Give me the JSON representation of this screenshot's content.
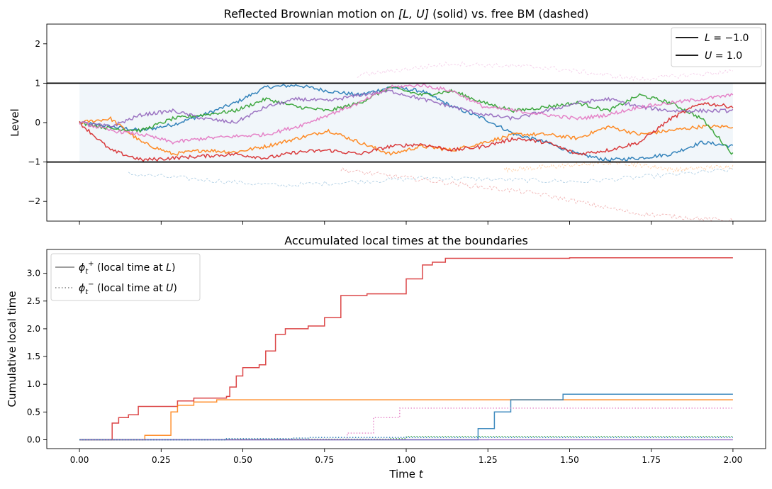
{
  "colors": {
    "tab_blue": "#1f77b4",
    "tab_orange": "#ff7f0e",
    "tab_green": "#2ca02c",
    "tab_red": "#d62728",
    "tab_purple": "#9467bd",
    "tab_pink": "#e377c2",
    "boundary": "#000000",
    "band_fill": "#e6eef5",
    "legend_gray": "#7f7f7f"
  },
  "chart_data": [
    {
      "type": "line",
      "title": "Reflected Brownian motion on [L, U] (solid) vs. free BM (dashed)",
      "title_parts": [
        "Reflected Brownian motion on ",
        "[L, U]",
        " (solid) vs. free BM (dashed)"
      ],
      "xlabel": "",
      "ylabel": "Level",
      "xlim": [
        -0.1,
        2.1
      ],
      "ylim": [
        -2.5,
        2.5
      ],
      "yticks": [
        "2",
        "1",
        "0",
        "−1",
        "−2"
      ],
      "ytick_values": [
        2,
        1,
        0,
        -1,
        -2
      ],
      "xticks_shown": false,
      "lower_boundary": -1.0,
      "upper_boundary": 1.0,
      "legend": {
        "position": "top-right",
        "entries": [
          {
            "prefix": "L",
            "text": " = −1.0"
          },
          {
            "prefix": "U",
            "text": " = 1.0"
          }
        ]
      },
      "series": [
        {
          "color": "#1f77b4",
          "reflected": [
            0,
            -0.1,
            -0.2,
            -0.05,
            0.2,
            0.5,
            0.9,
            0.95,
            0.8,
            0.7,
            0.9,
            0.8,
            0.4,
            0.1,
            -0.3,
            -0.5,
            -0.8,
            -0.95,
            -0.9,
            -0.8,
            -0.5,
            -0.6
          ],
          "free_tail": [
            -1.3,
            -1.6,
            -1.4,
            -1.5,
            -1.2
          ]
        },
        {
          "color": "#ff7f0e",
          "reflected": [
            0,
            0.1,
            -0.5,
            -0.8,
            -0.7,
            -0.75,
            -0.6,
            -0.4,
            -0.2,
            -0.5,
            -0.8,
            -0.6,
            -0.7,
            -0.5,
            -0.3,
            -0.3,
            -0.4,
            -0.1,
            -0.3,
            -0.2,
            -0.1,
            -0.1
          ],
          "free_tail": [
            -1.2,
            -1.1,
            -1.0,
            -1.2,
            -1.1
          ]
        },
        {
          "color": "#2ca02c",
          "reflected": [
            0,
            -0.15,
            -0.2,
            0.1,
            0.2,
            0.3,
            0.6,
            0.4,
            0.3,
            0.5,
            0.9,
            0.7,
            0.8,
            0.5,
            0.3,
            0.4,
            0.5,
            0.3,
            0.7,
            0.5,
            0.1,
            -0.8
          ],
          "free_tail": []
        },
        {
          "color": "#d62728",
          "reflected": [
            0,
            -0.7,
            -0.95,
            -0.9,
            -0.85,
            -0.8,
            -0.9,
            -0.75,
            -0.7,
            -0.8,
            -0.6,
            -0.55,
            -0.7,
            -0.6,
            -0.4,
            -0.5,
            -0.8,
            -0.7,
            -0.5,
            0.1,
            0.5,
            0.4
          ],
          "free_tail": [
            -1.2,
            -1.5,
            -1.8,
            -2.3,
            -2.5
          ]
        },
        {
          "color": "#9467bd",
          "reflected": [
            0,
            -0.1,
            0.2,
            0.3,
            0.1,
            0.0,
            0.4,
            0.6,
            0.55,
            0.7,
            0.8,
            0.6,
            0.4,
            0.2,
            0.1,
            0.3,
            0.5,
            0.6,
            0.4,
            0.3,
            0.3,
            0.3
          ],
          "free_tail": []
        },
        {
          "color": "#e377c2",
          "reflected": [
            0,
            -0.2,
            -0.3,
            -0.5,
            -0.4,
            -0.35,
            -0.3,
            -0.1,
            0.2,
            0.5,
            0.9,
            0.95,
            0.8,
            0.4,
            0.3,
            0.2,
            0.1,
            0.2,
            0.4,
            0.5,
            0.6,
            0.7
          ],
          "free_tail": [
            1.2,
            1.5,
            1.4,
            1.1,
            1.3
          ]
        }
      ]
    },
    {
      "type": "line",
      "title": "Accumulated local times at the boundaries",
      "xlabel": "Time t",
      "xlabel_parts": [
        "Time ",
        "t"
      ],
      "ylabel": "Cumulative local time",
      "xlim": [
        -0.1,
        2.1
      ],
      "ylim": [
        -0.16,
        3.43
      ],
      "xticks": [
        "0.00",
        "0.25",
        "0.50",
        "0.75",
        "1.00",
        "1.25",
        "1.50",
        "1.75",
        "2.00"
      ],
      "xtick_values": [
        0,
        0.25,
        0.5,
        0.75,
        1.0,
        1.25,
        1.5,
        1.75,
        2.0
      ],
      "yticks": [
        "0.0",
        "0.5",
        "1.0",
        "1.5",
        "2.0",
        "2.5",
        "3.0"
      ],
      "ytick_values": [
        0,
        0.5,
        1.0,
        1.5,
        2.0,
        2.5,
        3.0
      ],
      "legend": {
        "position": "top-left",
        "entries": [
          {
            "style": "solid",
            "suffix": " (local time at ",
            "var": "L",
            "close": ")"
          },
          {
            "style": "dotted",
            "suffix": " (local time at ",
            "var": "U",
            "close": ")"
          }
        ]
      },
      "series": [
        {
          "color": "#d62728",
          "style": "solid",
          "x": [
            0,
            0.09,
            0.1,
            0.12,
            0.15,
            0.18,
            0.28,
            0.3,
            0.35,
            0.45,
            0.46,
            0.48,
            0.5,
            0.55,
            0.57,
            0.6,
            0.63,
            0.7,
            0.75,
            0.8,
            0.88,
            0.96,
            1.0,
            1.05,
            1.08,
            1.12,
            1.5,
            2.0
          ],
          "y": [
            0,
            0,
            0.3,
            0.4,
            0.45,
            0.6,
            0.6,
            0.7,
            0.75,
            0.78,
            0.95,
            1.15,
            1.3,
            1.35,
            1.6,
            1.9,
            2.0,
            2.05,
            2.2,
            2.6,
            2.63,
            2.63,
            2.9,
            3.15,
            3.2,
            3.27,
            3.28,
            3.28
          ]
        },
        {
          "color": "#ff7f0e",
          "style": "solid",
          "x": [
            0,
            0.2,
            0.27,
            0.28,
            0.3,
            0.35,
            0.42,
            2.0
          ],
          "y": [
            0,
            0.08,
            0.08,
            0.5,
            0.62,
            0.68,
            0.72,
            0.72
          ]
        },
        {
          "color": "#1f77b4",
          "style": "solid",
          "x": [
            0,
            1.2,
            1.22,
            1.27,
            1.32,
            1.46,
            1.48,
            2.0
          ],
          "y": [
            0,
            0,
            0.2,
            0.5,
            0.72,
            0.72,
            0.82,
            0.82
          ]
        },
        {
          "color": "#e377c2",
          "style": "dotted",
          "x": [
            0,
            0.8,
            0.82,
            0.9,
            0.98,
            2.0
          ],
          "y": [
            0,
            0,
            0.12,
            0.4,
            0.57,
            0.57
          ]
        },
        {
          "color": "#2ca02c",
          "style": "dotted",
          "x": [
            0,
            0.45,
            0.95,
            1.0,
            2.0
          ],
          "y": [
            0,
            0.01,
            0.02,
            0.06,
            0.06
          ]
        },
        {
          "color": "#9467bd",
          "style": "solid",
          "x": [
            0,
            2.0
          ],
          "y": [
            0,
            0
          ]
        },
        {
          "color": "#1f77b4",
          "style": "dotted",
          "x": [
            0,
            0.45,
            0.65,
            0.7,
            2.0
          ],
          "y": [
            0,
            0.02,
            0.03,
            0.04,
            0.04
          ]
        }
      ]
    }
  ]
}
